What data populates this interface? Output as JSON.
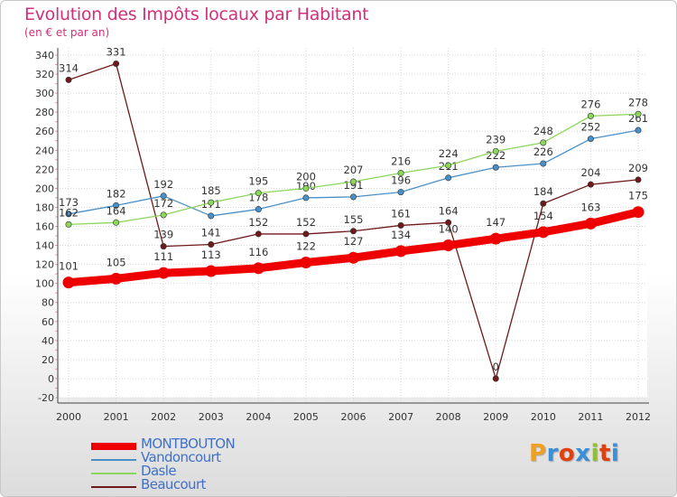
{
  "title": "Evolution des Impôts locaux par Habitant",
  "subtitle": "(en € et par an)",
  "logo": {
    "text": "Proxiti",
    "colors": [
      "#f0a020",
      "#3a8fd8",
      "#e04010",
      "#3a8fd8",
      "#90c030",
      "#e04010",
      "#3a8fd8"
    ]
  },
  "chart_data": {
    "type": "line",
    "x": [
      "2000",
      "2001",
      "2002",
      "2003",
      "2004",
      "2005",
      "2006",
      "2007",
      "2008",
      "2009",
      "2010",
      "2011",
      "2012"
    ],
    "ylim": [
      -20,
      340
    ],
    "yticks": [
      -20,
      0,
      20,
      40,
      60,
      80,
      100,
      120,
      140,
      160,
      180,
      200,
      220,
      240,
      260,
      280,
      300,
      320,
      340
    ],
    "grid": true,
    "legend_position": "bottom-left",
    "series": [
      {
        "name": "MONTBOUTON",
        "color": "#ee0000",
        "values": [
          101,
          105,
          111,
          113,
          116,
          122,
          127,
          134,
          140,
          147,
          154,
          163,
          175
        ]
      },
      {
        "name": "Vandoncourt",
        "color": "#4a90c8",
        "values": [
          173,
          182,
          192,
          171,
          178,
          190,
          191,
          196,
          211,
          222,
          226,
          252,
          261
        ]
      },
      {
        "name": "Dasle",
        "color": "#8cd65c",
        "values": [
          162,
          164,
          172,
          185,
          195,
          200,
          207,
          216,
          224,
          239,
          248,
          276,
          278
        ]
      },
      {
        "name": "Beaucourt",
        "color": "#6e1a1a",
        "values": [
          314,
          331,
          139,
          141,
          152,
          152,
          155,
          161,
          164,
          0,
          184,
          204,
          209
        ]
      }
    ]
  }
}
